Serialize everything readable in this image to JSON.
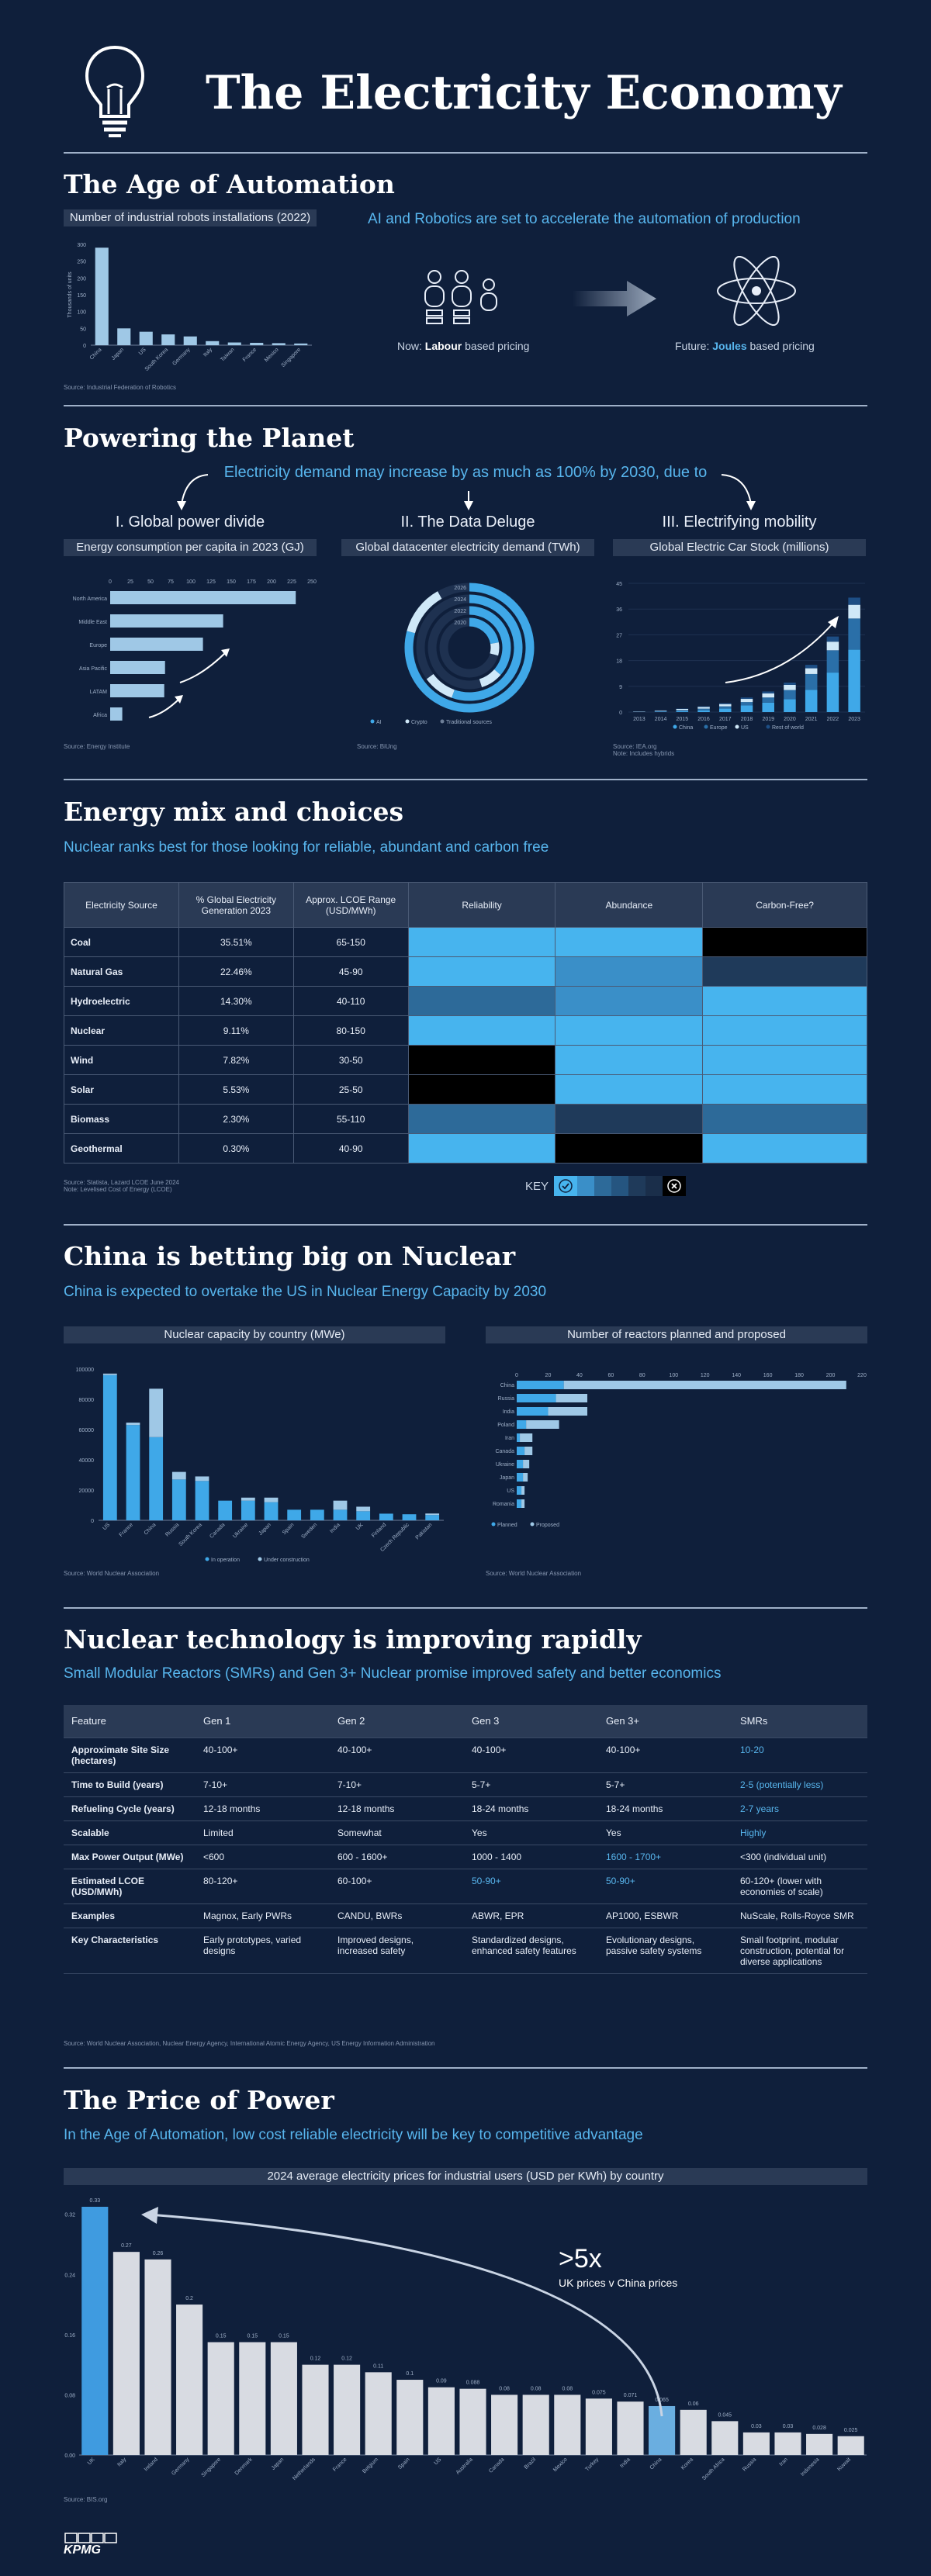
{
  "header": {
    "title": "The Electricity Economy"
  },
  "automation": {
    "title": "The Age of Automation",
    "chart_label": "Number of industrial robots installations (2022)",
    "ylabel": "Thousands of units",
    "tagline": "AI and Robotics are set to accelerate the automation of production",
    "now_prefix": "Now: ",
    "now_bold": "Labour",
    "now_suffix": " based pricing",
    "future_prefix": "Future: ",
    "future_bold": "Joules",
    "future_suffix": " based pricing",
    "source": "Source: Industrial Federation of Robotics"
  },
  "powering": {
    "title": "Powering the Planet",
    "subtitle": "Electricity demand may increase by as much as 100% by 2030, due to",
    "p1_title": "I. Global power divide",
    "p1_label": "Energy consumption per capita in 2023 (GJ)",
    "p2_title": "II. The Data Deluge",
    "p2_label": "Global datacenter electricity demand (TWh)",
    "p3_title": "III. Electrifying mobility",
    "p3_label": "Global Electric Car Stock  (millions)",
    "src1": "Source: Energy Institute",
    "src2": "Source: BiUng",
    "src3": "Source: IEA.org\nNote: Includes hybrids"
  },
  "mix": {
    "title": "Energy mix and choices",
    "subtitle": "Nuclear ranks best for those looking for reliable, abundant and carbon free",
    "headers": [
      "Electricity Source",
      "% Global Electricity Generation 2023",
      "Approx. LCOE Range (USD/MWh)",
      "Reliability",
      "Abundance",
      "Carbon-Free?"
    ],
    "rows": [
      {
        "name": "Coal",
        "pct": "35.51%",
        "lcoe": "65-150",
        "r": "#47b4ee",
        "a": "#47b4ee",
        "c": "#000000"
      },
      {
        "name": "Natural Gas",
        "pct": "22.46%",
        "lcoe": "45-90",
        "r": "#47b4ee",
        "a": "#3a8fc8",
        "c": "#1f3a5a"
      },
      {
        "name": "Hydroelectric",
        "pct": "14.30%",
        "lcoe": "40-110",
        "r": "#2d6a99",
        "a": "#3a8fc8",
        "c": "#47b4ee"
      },
      {
        "name": "Nuclear",
        "pct": "9.11%",
        "lcoe": "80-150",
        "r": "#47b4ee",
        "a": "#47b4ee",
        "c": "#47b4ee"
      },
      {
        "name": "Wind",
        "pct": "7.82%",
        "lcoe": "30-50",
        "r": "#000000",
        "a": "#47b4ee",
        "c": "#47b4ee"
      },
      {
        "name": "Solar",
        "pct": "5.53%",
        "lcoe": "25-50",
        "r": "#000000",
        "a": "#47b4ee",
        "c": "#47b4ee"
      },
      {
        "name": "Biomass",
        "pct": "2.30%",
        "lcoe": "55-110",
        "r": "#2d6a99",
        "a": "#1f3a5a",
        "c": "#2d6a99"
      },
      {
        "name": "Geothermal",
        "pct": "0.30%",
        "lcoe": "40-90",
        "r": "#47b4ee",
        "a": "#000000",
        "c": "#47b4ee"
      }
    ],
    "key": "KEY",
    "source": "Source: Statista, Lazard LCOE June 2024\nNote: Levelised Cost of Energy (LCOE)"
  },
  "china": {
    "title": "China is betting big on Nuclear",
    "subtitle": "China is expected to overtake the US in Nuclear Energy Capacity by 2030",
    "l_label": "Nuclear capacity by country (MWe)",
    "r_label": "Number of reactors planned and proposed",
    "source1": "Source: World Nuclear Association",
    "source2": "Source: World Nuclear Association"
  },
  "tech": {
    "title": "Nuclear technology is improving rapidly",
    "subtitle": "Small Modular Reactors (SMRs) and Gen 3+ Nuclear promise improved safety and better economics",
    "headers": [
      "Feature",
      "Gen 1",
      "Gen 2",
      "Gen 3",
      "Gen 3+",
      "SMRs"
    ],
    "rows": [
      [
        "Approximate Site Size (hectares)",
        "40-100+",
        "40-100+",
        "40-100+",
        "40-100+",
        "10-20"
      ],
      [
        "Time to Build (years)",
        "7-10+",
        "7-10+",
        "5-7+",
        "5-7+",
        "2-5 (potentially less)"
      ],
      [
        "Refueling Cycle (years)",
        "12-18 months",
        "12-18 months",
        "18-24 months",
        "18-24 months",
        "2-7 years"
      ],
      [
        "Scalable",
        "Limited",
        "Somewhat",
        "Yes",
        "Yes",
        "Highly"
      ],
      [
        "Max Power Output (MWe)",
        "<600",
        "600 - 1600+",
        "1000 - 1400",
        "1600 - 1700+",
        "<300 (individual unit)"
      ],
      [
        "Estimated LCOE (USD/MWh)",
        "80-120+",
        "60-100+",
        "50-90+",
        "50-90+",
        "60-120+ (lower with economies of scale)"
      ],
      [
        "Examples",
        "Magnox, Early PWRs",
        "CANDU, BWRs",
        "ABWR, EPR",
        "AP1000, ESBWR",
        "NuScale, Rolls-Royce SMR"
      ],
      [
        "Key Characteristics",
        "Early prototypes, varied designs",
        "Improved designs, increased safety",
        "Standardized designs, enhanced safety features",
        "Evolutionary designs, passive safety systems",
        "Small footprint, modular construction, potential for diverse applications"
      ]
    ],
    "source": "Source: World Nuclear Association, Nuclear Energy Agency, International Atomic Energy Agency, US Energy Information Administration"
  },
  "price": {
    "title": "The Price of Power",
    "subtitle": "In the Age of Automation, low cost reliable electricity will be key to competitive advantage",
    "label": "2024 average electricity prices for industrial users (USD per KWh) by country",
    "callout": ">5x",
    "callout_sub": "UK prices v China prices",
    "source": "Source: BIS.org"
  },
  "footer": {
    "logo": "KPMG"
  },
  "colors": {
    "bg": "#0f1f3b",
    "accent": "#58b6ee",
    "bar": "#9fc8e6"
  },
  "chart_data": [
    {
      "type": "bar",
      "id": "robots",
      "title": "Number of industrial robots installations (2022)",
      "ylabel": "Thousands of units",
      "categories": [
        "China",
        "Japan",
        "US",
        "South Korea",
        "Germany",
        "Italy",
        "Taiwan",
        "France",
        "Mexico",
        "Singapore"
      ],
      "values": [
        290,
        50,
        40,
        32,
        26,
        12,
        8,
        7,
        6,
        5
      ],
      "ylim": [
        0,
        300
      ],
      "yticks": [
        0,
        50,
        100,
        150,
        200,
        250,
        300
      ]
    },
    {
      "type": "bar",
      "id": "energy",
      "orientation": "horizontal",
      "title": "Energy consumption per capita in 2023 (GJ)",
      "categories": [
        "North America",
        "Middle East",
        "Europe",
        "Asia Pacific",
        "LATAM",
        "Africa"
      ],
      "values": [
        230,
        140,
        115,
        68,
        67,
        15
      ],
      "xlim": [
        0,
        250
      ],
      "xticks": [
        0,
        25,
        50,
        75,
        100,
        125,
        150,
        175,
        200,
        225,
        250
      ]
    },
    {
      "type": "pie",
      "id": "datacenter",
      "title": "Global datacenter electricity demand (TWh)",
      "categories": [
        "2026",
        "2024",
        "2022",
        "2020"
      ],
      "series": [
        {
          "name": "AI",
          "values": [
            1000,
            700,
            460,
            280
          ]
        },
        {
          "name": "Crypto",
          "values": [
            160,
            120,
            110,
            90
          ]
        },
        {
          "name": "Traditional sources",
          "values": [
            0,
            0,
            0,
            0
          ]
        }
      ],
      "legend": [
        "AI",
        "Crypto",
        "Traditional sources"
      ],
      "ring_labels": [
        "2026",
        "2024",
        "2022",
        "2020"
      ]
    },
    {
      "type": "bar",
      "id": "ev",
      "stacked": true,
      "title": "Global Electric Car Stock  (millions)",
      "categories": [
        "2013",
        "2014",
        "2015",
        "2016",
        "2017",
        "2018",
        "2019",
        "2020",
        "2021",
        "2022",
        "2023"
      ],
      "series": [
        {
          "name": "China",
          "values": [
            0.0,
            0.1,
            0.3,
            0.6,
            1.2,
            2.3,
            3.3,
            4.5,
            7.8,
            13.8,
            21.8
          ]
        },
        {
          "name": "Europe",
          "values": [
            0.1,
            0.2,
            0.4,
            0.6,
            0.8,
            1.2,
            1.8,
            3.2,
            5.5,
            7.8,
            10.9
          ]
        },
        {
          "name": "US",
          "values": [
            0.1,
            0.2,
            0.4,
            0.6,
            0.8,
            1.1,
            1.4,
            1.8,
            2.0,
            3.0,
            4.8
          ]
        },
        {
          "name": "Rest of world",
          "values": [
            0.0,
            0.1,
            0.1,
            0.2,
            0.3,
            0.5,
            0.7,
            0.8,
            1.2,
            1.8,
            2.5
          ]
        }
      ],
      "ylim": [
        0,
        45
      ],
      "yticks": [
        0,
        9,
        18,
        27,
        36,
        45
      ]
    },
    {
      "type": "bar",
      "id": "capacity",
      "stacked": true,
      "title": "Nuclear capacity by country (MWe)",
      "categories": [
        "US",
        "France",
        "China",
        "Russia",
        "South Korea",
        "Canada",
        "Ukraine",
        "Japan",
        "Spain",
        "Sweden",
        "India",
        "UK",
        "Finland",
        "Czech Republic",
        "Pakistan"
      ],
      "series": [
        {
          "name": "In operation",
          "values": [
            96000,
            63000,
            55000,
            27000,
            26000,
            13000,
            13000,
            12000,
            7000,
            7000,
            7000,
            6000,
            4400,
            4000,
            3500
          ]
        },
        {
          "name": "Under construction",
          "values": [
            1000,
            1600,
            32000,
            5000,
            3000,
            0,
            2000,
            3000,
            0,
            0,
            6000,
            3000,
            0,
            0,
            1000
          ]
        }
      ],
      "ylim": [
        0,
        100000
      ],
      "yticks": [
        0,
        20000,
        40000,
        60000,
        80000,
        100000
      ]
    },
    {
      "type": "bar",
      "id": "reactors",
      "orientation": "horizontal",
      "stacked": true,
      "title": "Number of reactors planned and proposed",
      "categories": [
        "China",
        "Russia",
        "India",
        "Poland",
        "Iran",
        "Canada",
        "Ukraine",
        "Japan",
        "US",
        "Romania"
      ],
      "series": [
        {
          "name": "Planned",
          "values": [
            30,
            25,
            20,
            6,
            2,
            5,
            4,
            4,
            3,
            3
          ]
        },
        {
          "name": "Proposed",
          "values": [
            180,
            20,
            25,
            21,
            8,
            5,
            4,
            3,
            2,
            2
          ]
        }
      ],
      "xlim": [
        0,
        220
      ],
      "xticks": [
        0,
        20,
        40,
        60,
        80,
        100,
        120,
        140,
        160,
        180,
        200,
        220
      ]
    },
    {
      "type": "bar",
      "id": "prices",
      "title": "2024 average electricity prices for industrial users (USD per KWh) by country",
      "categories": [
        "UK",
        "Italy",
        "Ireland",
        "Germany",
        "Singapore",
        "Denmark",
        "Japan",
        "Netherlands",
        "France",
        "Belgium",
        "Spain",
        "US",
        "Australia",
        "Canada",
        "Brazil",
        "Mexico",
        "Turkey",
        "India",
        "China",
        "Korea",
        "South Africa",
        "Russia",
        "Iran",
        "Indonesia",
        "Kuwait"
      ],
      "values": [
        0.33,
        0.27,
        0.26,
        0.2,
        0.15,
        0.15,
        0.15,
        0.12,
        0.12,
        0.11,
        0.1,
        0.09,
        0.088,
        0.08,
        0.08,
        0.08,
        0.075,
        0.071,
        0.065,
        0.06,
        0.045,
        0.03,
        0.03,
        0.028,
        0.025
      ],
      "highlight": [
        "UK",
        "China"
      ],
      "ylim": [
        0,
        0.33
      ],
      "yticks": [
        0,
        0.08,
        0.16,
        0.24,
        0.32
      ]
    }
  ]
}
